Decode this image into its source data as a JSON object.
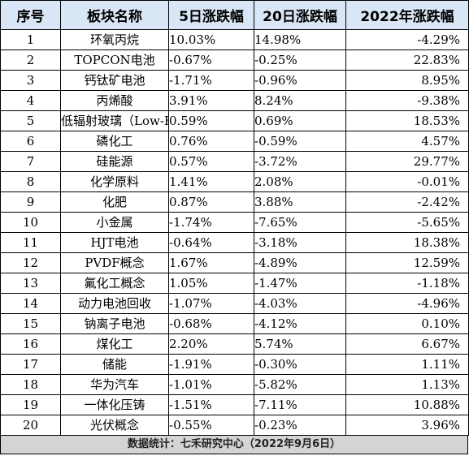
{
  "headers": {
    "rank": "序号",
    "name": "板块名称",
    "d5": "5日涨跌幅",
    "d20": "20日涨跌幅",
    "y2022": "2022年涨跌幅"
  },
  "rows": [
    {
      "rank": "1",
      "name": "环氧丙烷",
      "d5": "10.03%",
      "d20": "14.98%",
      "y2022": "-4.29%"
    },
    {
      "rank": "2",
      "name": "TOPCON电池",
      "d5": "-0.67%",
      "d20": "-0.25%",
      "y2022": "22.83%"
    },
    {
      "rank": "3",
      "name": "钙钛矿电池",
      "d5": "-1.71%",
      "d20": "-0.96%",
      "y2022": "8.95%"
    },
    {
      "rank": "4",
      "name": "丙烯酸",
      "d5": "3.91%",
      "d20": "8.24%",
      "y2022": "-9.38%"
    },
    {
      "rank": "5",
      "name": "低辐射玻璃（Low-E）",
      "d5": "0.59%",
      "d20": "0.69%",
      "y2022": "18.53%"
    },
    {
      "rank": "6",
      "name": "磷化工",
      "d5": "0.76%",
      "d20": "-0.59%",
      "y2022": "4.57%"
    },
    {
      "rank": "7",
      "name": "硅能源",
      "d5": "0.57%",
      "d20": "-3.72%",
      "y2022": "29.77%"
    },
    {
      "rank": "8",
      "name": "化学原料",
      "d5": "1.41%",
      "d20": "2.08%",
      "y2022": "-0.01%"
    },
    {
      "rank": "9",
      "name": "化肥",
      "d5": "0.87%",
      "d20": "3.88%",
      "y2022": "-2.42%"
    },
    {
      "rank": "10",
      "name": "小金属",
      "d5": "-1.74%",
      "d20": "-7.65%",
      "y2022": "-5.65%"
    },
    {
      "rank": "11",
      "name": "HJT电池",
      "d5": "-0.64%",
      "d20": "-3.18%",
      "y2022": "18.38%"
    },
    {
      "rank": "12",
      "name": "PVDF概念",
      "d5": "1.67%",
      "d20": "-4.89%",
      "y2022": "12.59%"
    },
    {
      "rank": "13",
      "name": "氟化工概念",
      "d5": "1.05%",
      "d20": "-1.47%",
      "y2022": "-1.18%"
    },
    {
      "rank": "14",
      "name": "动力电池回收",
      "d5": "-1.07%",
      "d20": "-4.03%",
      "y2022": "-4.96%"
    },
    {
      "rank": "15",
      "name": "钠离子电池",
      "d5": "-0.68%",
      "d20": "-4.12%",
      "y2022": "0.10%"
    },
    {
      "rank": "16",
      "name": "煤化工",
      "d5": "2.20%",
      "d20": "5.74%",
      "y2022": "6.67%"
    },
    {
      "rank": "17",
      "name": "储能",
      "d5": "-1.91%",
      "d20": "-0.30%",
      "y2022": "1.11%"
    },
    {
      "rank": "18",
      "name": "华为汽车",
      "d5": "-1.01%",
      "d20": "-5.82%",
      "y2022": "1.13%"
    },
    {
      "rank": "19",
      "name": "一体化压铸",
      "d5": "-1.51%",
      "d20": "-7.11%",
      "y2022": "10.88%"
    },
    {
      "rank": "20",
      "name": "光伏概念",
      "d5": "-0.55%",
      "d20": "-0.23%",
      "y2022": "3.96%"
    }
  ],
  "footer": "数据统计：七禾研究中心（2022年9月6日）"
}
